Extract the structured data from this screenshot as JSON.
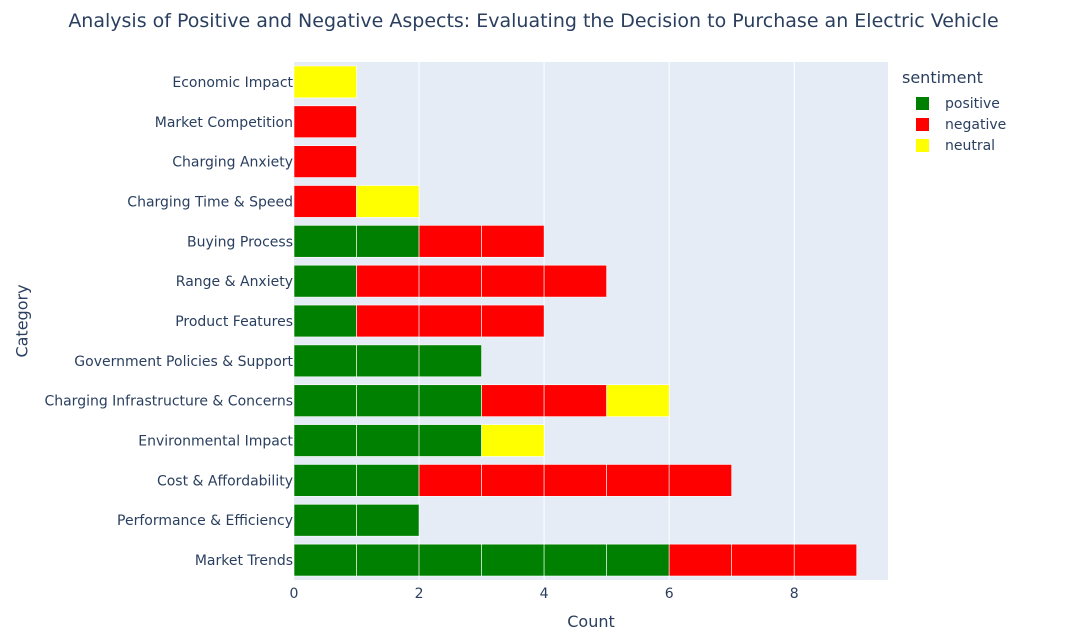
{
  "chart_data": {
    "type": "bar",
    "orientation": "horizontal",
    "barmode": "stack",
    "title": "Analysis of Positive and Negative Aspects: Evaluating the Decision to Purchase an Electric Vehicle",
    "xlabel": "Count",
    "ylabel": "Category",
    "xlim": [
      0,
      9.5
    ],
    "xticks": [
      0,
      2,
      4,
      6,
      8
    ],
    "legend_title": "sentiment",
    "legend_position": "top-right",
    "categories": [
      "Market Trends",
      "Performance & Efficiency",
      "Cost & Affordability",
      "Environmental Impact",
      "Charging Infrastructure & Concerns",
      "Government Policies & Support",
      "Product Features",
      "Range & Anxiety",
      "Buying Process",
      "Charging Time & Speed",
      "Charging Anxiety",
      "Market Competition",
      "Economic Impact"
    ],
    "series": [
      {
        "name": "positive",
        "color": "#008000",
        "values": [
          6,
          2,
          2,
          3,
          3,
          3,
          1,
          1,
          2,
          0,
          0,
          0,
          0
        ]
      },
      {
        "name": "negative",
        "color": "#ff0000",
        "values": [
          3,
          0,
          5,
          0,
          2,
          0,
          3,
          4,
          2,
          1,
          1,
          1,
          0
        ]
      },
      {
        "name": "neutral",
        "color": "#ffff00",
        "values": [
          0,
          0,
          0,
          1,
          1,
          0,
          0,
          0,
          0,
          1,
          0,
          0,
          1
        ]
      }
    ]
  }
}
